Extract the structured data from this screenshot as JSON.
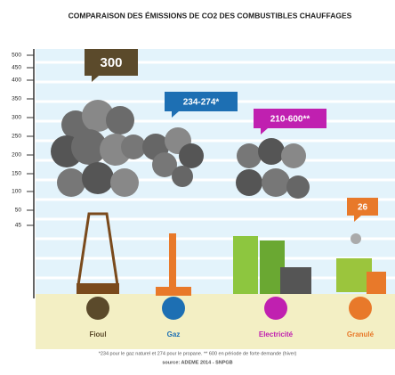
{
  "title": "COMPARAISON DES ÉMISSIONS DE CO2 DES COMBUSTIBLES CHAUFFAGES",
  "y_axis": {
    "ticks": [
      500,
      450,
      400,
      350,
      300,
      250,
      200,
      150,
      100,
      50,
      45
    ]
  },
  "items": [
    {
      "label": "Fioul",
      "value_label": "300",
      "color": "#5b4a2b"
    },
    {
      "label": "Gaz",
      "value_label": "234-274*",
      "color": "#1d6fb3"
    },
    {
      "label": "Electricité",
      "value_label": "210-600**",
      "color": "#c020b0"
    },
    {
      "label": "Granulé",
      "value_label": "26",
      "color": "#e8792a"
    }
  ],
  "footnote": "*234 pour le gaz naturel et 274 pour le propane. ** 600 en période de forte demande (hiver)",
  "source": "source: ADEME 2014 - SNPGB"
}
